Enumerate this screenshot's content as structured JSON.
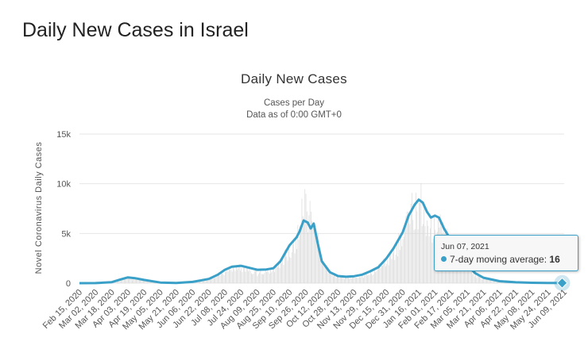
{
  "page": {
    "title": "Daily New Cases in Israel"
  },
  "chart_data": {
    "type": "bar",
    "title": "Daily New Cases",
    "subtitle_lines": [
      "Cases per Day",
      "Data as of 0:00 GMT+0"
    ],
    "ylabel": "Novel Coronavirus Daily Cases",
    "xlabel": "",
    "ylim": [
      0,
      15000
    ],
    "yticks": [
      0,
      5000,
      10000,
      15000
    ],
    "ytick_labels": [
      "0",
      "5k",
      "10k",
      "15k"
    ],
    "x_start": "2020-02-15",
    "x_end": "2021-06-09",
    "xtick_labels": [
      "Feb 15, 2020",
      "Mar 02, 2020",
      "Mar 18, 2020",
      "Apr 03, 2020",
      "Apr 19, 2020",
      "May 05, 2020",
      "May 21, 2020",
      "Jun 06, 2020",
      "Jun 22, 2020",
      "Jul 08, 2020",
      "Jul 24, 2020",
      "Aug 09, 2020",
      "Aug 25, 2020",
      "Sep 10, 2020",
      "Sep 26, 2020",
      "Oct 12, 2020",
      "Oct 28, 2020",
      "Nov 13, 2020",
      "Nov 29, 2020",
      "Dec 15, 2020",
      "Dec 31, 2020",
      "Jan 16, 2021",
      "Feb 01, 2021",
      "Feb 17, 2021",
      "Mar 05, 2021",
      "Mar 21, 2021",
      "Apr 06, 2021",
      "Apr 22, 2021",
      "May 08, 2021",
      "May 24, 2021",
      "Jun 09, 2021"
    ],
    "grid": true,
    "colors": {
      "bars": "#d9d9d9",
      "line": "#3aa0c8",
      "grid": "#e6e6e6"
    },
    "series": [
      {
        "name": "Daily Cases",
        "kind": "bar",
        "points": [
          [
            "2020-02-15",
            0
          ],
          [
            "2020-03-02",
            5
          ],
          [
            "2020-03-18",
            150
          ],
          [
            "2020-03-26",
            450
          ],
          [
            "2020-04-03",
            700
          ],
          [
            "2020-04-10",
            550
          ],
          [
            "2020-04-19",
            400
          ],
          [
            "2020-05-05",
            60
          ],
          [
            "2020-05-21",
            40
          ],
          [
            "2020-06-06",
            200
          ],
          [
            "2020-06-22",
            500
          ],
          [
            "2020-07-01",
            1100
          ],
          [
            "2020-07-08",
            1500
          ],
          [
            "2020-07-15",
            1800
          ],
          [
            "2020-07-24",
            2000
          ],
          [
            "2020-08-02",
            1700
          ],
          [
            "2020-08-09",
            1300
          ],
          [
            "2020-08-18",
            1500
          ],
          [
            "2020-08-25",
            1800
          ],
          [
            "2020-09-01",
            2800
          ],
          [
            "2020-09-10",
            4200
          ],
          [
            "2020-09-17",
            5500
          ],
          [
            "2020-09-22",
            9000
          ],
          [
            "2020-09-24",
            11200
          ],
          [
            "2020-09-28",
            8800
          ],
          [
            "2020-10-01",
            8400
          ],
          [
            "2020-10-04",
            7500
          ],
          [
            "2020-10-08",
            6000
          ],
          [
            "2020-10-12",
            2500
          ],
          [
            "2020-10-20",
            1200
          ],
          [
            "2020-10-28",
            800
          ],
          [
            "2020-11-05",
            700
          ],
          [
            "2020-11-13",
            800
          ],
          [
            "2020-11-21",
            900
          ],
          [
            "2020-11-29",
            1300
          ],
          [
            "2020-12-07",
            1900
          ],
          [
            "2020-12-15",
            3000
          ],
          [
            "2020-12-22",
            4000
          ],
          [
            "2020-12-31",
            6000
          ],
          [
            "2021-01-06",
            8500
          ],
          [
            "2021-01-10",
            9400
          ],
          [
            "2021-01-14",
            9600
          ],
          [
            "2021-01-18",
            10200
          ],
          [
            "2021-01-22",
            8200
          ],
          [
            "2021-01-26",
            6500
          ],
          [
            "2021-02-01",
            8000
          ],
          [
            "2021-02-05",
            8700
          ],
          [
            "2021-02-10",
            6500
          ],
          [
            "2021-02-17",
            4500
          ],
          [
            "2021-02-24",
            3500
          ],
          [
            "2021-03-05",
            2200
          ],
          [
            "2021-03-13",
            1000
          ],
          [
            "2021-03-21",
            600
          ],
          [
            "2021-04-06",
            250
          ],
          [
            "2021-04-22",
            100
          ],
          [
            "2021-05-08",
            60
          ],
          [
            "2021-05-24",
            20
          ],
          [
            "2021-06-09",
            10
          ]
        ]
      },
      {
        "name": "7-day moving average",
        "kind": "line",
        "points": [
          [
            "2020-02-15",
            0
          ],
          [
            "2020-03-02",
            5
          ],
          [
            "2020-03-18",
            100
          ],
          [
            "2020-03-26",
            350
          ],
          [
            "2020-04-03",
            580
          ],
          [
            "2020-04-10",
            500
          ],
          [
            "2020-04-19",
            330
          ],
          [
            "2020-05-05",
            60
          ],
          [
            "2020-05-21",
            20
          ],
          [
            "2020-06-06",
            130
          ],
          [
            "2020-06-22",
            420
          ],
          [
            "2020-07-01",
            850
          ],
          [
            "2020-07-08",
            1350
          ],
          [
            "2020-07-15",
            1650
          ],
          [
            "2020-07-24",
            1750
          ],
          [
            "2020-08-01",
            1550
          ],
          [
            "2020-08-09",
            1350
          ],
          [
            "2020-08-18",
            1380
          ],
          [
            "2020-08-25",
            1500
          ],
          [
            "2020-09-01",
            2200
          ],
          [
            "2020-09-10",
            3800
          ],
          [
            "2020-09-17",
            4600
          ],
          [
            "2020-09-20",
            5200
          ],
          [
            "2020-09-24",
            6300
          ],
          [
            "2020-09-28",
            6100
          ],
          [
            "2020-10-01",
            5500
          ],
          [
            "2020-10-04",
            6000
          ],
          [
            "2020-10-08",
            4000
          ],
          [
            "2020-10-12",
            2200
          ],
          [
            "2020-10-20",
            1100
          ],
          [
            "2020-10-28",
            720
          ],
          [
            "2020-11-05",
            650
          ],
          [
            "2020-11-13",
            700
          ],
          [
            "2020-11-21",
            850
          ],
          [
            "2020-11-29",
            1200
          ],
          [
            "2020-12-07",
            1600
          ],
          [
            "2020-12-15",
            2500
          ],
          [
            "2020-12-22",
            3500
          ],
          [
            "2020-12-31",
            5100
          ],
          [
            "2021-01-06",
            6800
          ],
          [
            "2021-01-12",
            7900
          ],
          [
            "2021-01-16",
            8400
          ],
          [
            "2021-01-20",
            8100
          ],
          [
            "2021-01-24",
            7200
          ],
          [
            "2021-01-28",
            6600
          ],
          [
            "2021-02-01",
            6800
          ],
          [
            "2021-02-05",
            6600
          ],
          [
            "2021-02-10",
            5500
          ],
          [
            "2021-02-17",
            4300
          ],
          [
            "2021-02-24",
            3200
          ],
          [
            "2021-03-05",
            1800
          ],
          [
            "2021-03-13",
            1000
          ],
          [
            "2021-03-21",
            550
          ],
          [
            "2021-04-06",
            200
          ],
          [
            "2021-04-22",
            90
          ],
          [
            "2021-05-08",
            40
          ],
          [
            "2021-05-24",
            16
          ],
          [
            "2021-06-07",
            16
          ]
        ]
      }
    ],
    "tooltip": {
      "date": "Jun 07, 2021",
      "series_label": "7-day moving average: ",
      "value": "16"
    }
  }
}
